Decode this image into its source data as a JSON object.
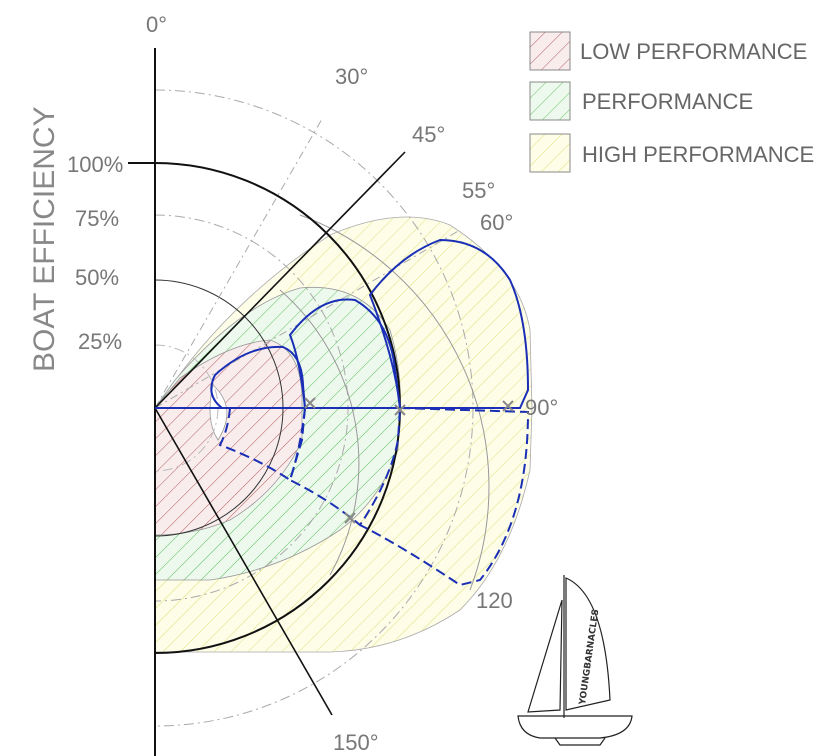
{
  "diagram": {
    "y_axis_label": "BOAT EFFICIENCY",
    "efficiency_labels": [
      "100%",
      "75%",
      "50%",
      "25%"
    ],
    "angle_labels": [
      "0°",
      "30°",
      "45°",
      "55°",
      "60°",
      "90°",
      "120",
      "150°"
    ],
    "legend": [
      {
        "label": "LOW PERFORMANCE",
        "color": "#c77b7b"
      },
      {
        "label": "PERFORMANCE",
        "color": "#7ac77a"
      },
      {
        "label": "HIGH PERFORMANCE",
        "color": "#e4e48a"
      }
    ],
    "polar_line_color": "#1a2fb5",
    "logo_text": "YOUNGBARNACLES"
  }
}
